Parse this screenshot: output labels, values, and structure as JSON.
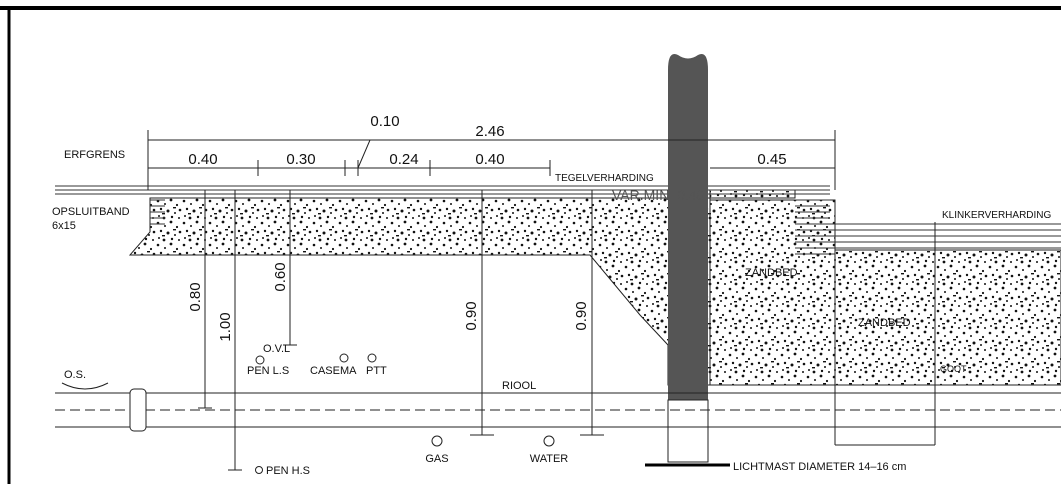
{
  "labels": {
    "boundary": "ERFGRENS",
    "kerb": "OPSLUITBAND",
    "kerb_size": "6x15",
    "tile_paving": "TEGELVERHARDING",
    "clinker_paving": "KLINKERVERHARDING",
    "min_note": "VAR.MIN. 0.40",
    "sand_left": "ZANDBED",
    "sand_right": "ZANDBED",
    "gutter": "GOOT",
    "sewer_left": "O.S.",
    "sewer": "RIOOL",
    "lamp_post": "LICHTMAST DIAMETER 14–16 cm"
  },
  "dimensions": {
    "total": "2.46",
    "offset": "0.10",
    "horizontal": [
      "0.40",
      "0.30",
      "0.24",
      "0.40",
      "0.45"
    ],
    "vertical": [
      "0.80",
      "1.00",
      "0.60",
      "0.90",
      "0.90"
    ]
  },
  "cables": {
    "ovl": "O.V.L",
    "pen_ls": "PEN L.S",
    "casema": "CASEMA",
    "ptt": "PTT",
    "gas": "GAS",
    "water": "WATER",
    "pen_hs": "PEN H.S"
  }
}
